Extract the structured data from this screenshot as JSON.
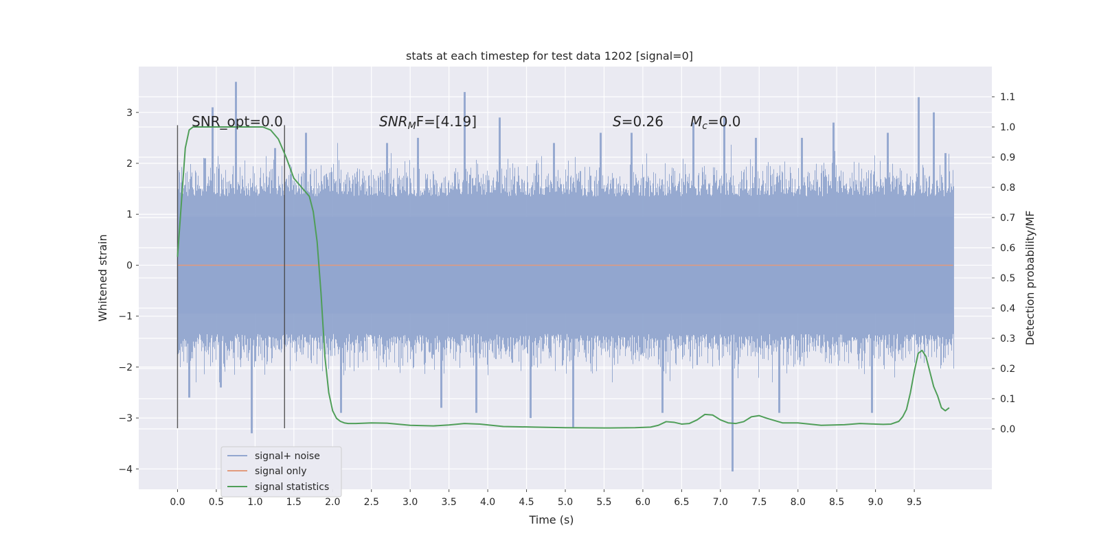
{
  "chart_data": {
    "type": "line",
    "title": "stats at each timestep for test data 1202 [signal=0]",
    "xlabel": "Time (s)",
    "ylabel": "Whitened strain",
    "y2label": "Detection probability/MF",
    "xlim": [
      -0.5,
      10.5
    ],
    "ylim": [
      -4.4,
      3.9
    ],
    "y2lim": [
      -0.2,
      1.2
    ],
    "xticks": [
      0.0,
      0.5,
      1.0,
      1.5,
      2.0,
      2.5,
      3.0,
      3.5,
      4.0,
      4.5,
      5.0,
      5.5,
      6.0,
      6.5,
      7.0,
      7.5,
      8.0,
      8.5,
      9.0,
      9.5
    ],
    "xtick_labels": [
      "0.0",
      "0.5",
      "1.0",
      "1.5",
      "2.0",
      "2.5",
      "3.0",
      "3.5",
      "4.0",
      "4.5",
      "5.0",
      "5.5",
      "6.0",
      "6.5",
      "7.0",
      "7.5",
      "8.0",
      "8.5",
      "9.0",
      "9.5"
    ],
    "yticks": [
      -4,
      -3,
      -2,
      -1,
      0,
      1,
      2,
      3
    ],
    "ytick_labels": [
      "−4",
      "−3",
      "−2",
      "−1",
      "0",
      "1",
      "2",
      "3"
    ],
    "y2ticks": [
      0.0,
      0.1,
      0.2,
      0.3,
      0.4,
      0.5,
      0.6,
      0.7,
      0.8,
      0.9,
      1.0,
      1.1
    ],
    "y2tick_labels": [
      "0.0",
      "0.1",
      "0.2",
      "0.3",
      "0.4",
      "0.5",
      "0.6",
      "0.7",
      "0.8",
      "0.9",
      "1.0",
      "1.1"
    ],
    "grid": true,
    "legend_position": "lower-left",
    "annotations": {
      "snr_opt": "SNR_opt=0.0",
      "snr_mf_prefix": "SNR",
      "snr_mf_sub": "M",
      "snr_mf_suffix": "F=[4.19]",
      "s_italic": "S",
      "s_value": "=0.26",
      "mc_italic": "M",
      "mc_sub": "c",
      "mc_value": "=0.0"
    },
    "markers": {
      "x": [
        0.0,
        1.38
      ],
      "y_range": [
        -3.2,
        2.75
      ]
    },
    "noise": {
      "x_start": 0.0,
      "x_end": 10.0,
      "typical_amplitude": [
        -1.8,
        2.0
      ],
      "peaks": [
        {
          "x": 0.15,
          "y": -2.6
        },
        {
          "x": 0.35,
          "y": 2.1
        },
        {
          "x": 0.45,
          "y": 3.1
        },
        {
          "x": 0.55,
          "y": -2.4
        },
        {
          "x": 0.75,
          "y": 3.6
        },
        {
          "x": 0.95,
          "y": -3.3
        },
        {
          "x": 1.25,
          "y": 2.3
        },
        {
          "x": 1.65,
          "y": 2.6
        },
        {
          "x": 2.1,
          "y": -2.9
        },
        {
          "x": 2.7,
          "y": 2.4
        },
        {
          "x": 3.1,
          "y": 2.5
        },
        {
          "x": 3.4,
          "y": -2.8
        },
        {
          "x": 3.7,
          "y": 3.4
        },
        {
          "x": 3.85,
          "y": -2.9
        },
        {
          "x": 4.15,
          "y": 2.9
        },
        {
          "x": 4.55,
          "y": -3.0
        },
        {
          "x": 4.85,
          "y": 2.4
        },
        {
          "x": 5.1,
          "y": -3.2
        },
        {
          "x": 5.45,
          "y": 2.6
        },
        {
          "x": 5.85,
          "y": 2.6
        },
        {
          "x": 6.25,
          "y": -2.9
        },
        {
          "x": 6.65,
          "y": 2.8
        },
        {
          "x": 7.05,
          "y": 2.9
        },
        {
          "x": 7.15,
          "y": -4.05
        },
        {
          "x": 7.45,
          "y": 2.5
        },
        {
          "x": 7.75,
          "y": -2.9
        },
        {
          "x": 8.05,
          "y": 2.5
        },
        {
          "x": 8.45,
          "y": 2.8
        },
        {
          "x": 8.95,
          "y": -2.9
        },
        {
          "x": 9.15,
          "y": 2.6
        },
        {
          "x": 9.55,
          "y": 3.3
        },
        {
          "x": 9.75,
          "y": 3.0
        },
        {
          "x": 9.9,
          "y": 2.2
        }
      ]
    },
    "series": [
      {
        "name": "signal+ noise",
        "color": "#92a6cf",
        "axis": "left"
      },
      {
        "name": "signal only",
        "color": "#e29a7c",
        "axis": "left",
        "x": [
          0.0,
          10.0
        ],
        "values": [
          0.0,
          0.0
        ]
      },
      {
        "name": "signal statistics",
        "color": "#4f9e58",
        "axis": "right",
        "x": [
          0.0,
          0.05,
          0.1,
          0.15,
          0.2,
          0.3,
          0.5,
          0.8,
          1.0,
          1.1,
          1.2,
          1.3,
          1.4,
          1.5,
          1.6,
          1.7,
          1.75,
          1.8,
          1.85,
          1.9,
          1.95,
          2.0,
          2.05,
          2.1,
          2.15,
          2.2,
          2.3,
          2.5,
          2.7,
          3.0,
          3.3,
          3.5,
          3.7,
          3.9,
          4.2,
          4.6,
          5.0,
          5.5,
          5.9,
          6.1,
          6.2,
          6.3,
          6.4,
          6.5,
          6.6,
          6.7,
          6.8,
          6.9,
          7.0,
          7.1,
          7.2,
          7.3,
          7.4,
          7.5,
          7.6,
          7.8,
          8.0,
          8.3,
          8.6,
          8.8,
          9.0,
          9.1,
          9.2,
          9.3,
          9.35,
          9.4,
          9.45,
          9.5,
          9.55,
          9.6,
          9.65,
          9.7,
          9.75,
          9.8,
          9.85,
          9.9,
          9.95
        ],
        "values": [
          0.57,
          0.75,
          0.93,
          0.99,
          1.0,
          1.0,
          1.0,
          1.0,
          1.0,
          1.0,
          0.99,
          0.96,
          0.9,
          0.83,
          0.8,
          0.77,
          0.72,
          0.62,
          0.45,
          0.24,
          0.12,
          0.06,
          0.035,
          0.025,
          0.02,
          0.018,
          0.018,
          0.02,
          0.019,
          0.012,
          0.01,
          0.013,
          0.018,
          0.016,
          0.008,
          0.006,
          0.004,
          0.003,
          0.004,
          0.006,
          0.012,
          0.024,
          0.022,
          0.016,
          0.018,
          0.03,
          0.048,
          0.046,
          0.03,
          0.02,
          0.018,
          0.024,
          0.04,
          0.044,
          0.035,
          0.02,
          0.02,
          0.012,
          0.014,
          0.018,
          0.016,
          0.015,
          0.016,
          0.025,
          0.04,
          0.065,
          0.12,
          0.19,
          0.25,
          0.26,
          0.24,
          0.19,
          0.14,
          0.11,
          0.07,
          0.06,
          0.07
        ]
      }
    ]
  }
}
